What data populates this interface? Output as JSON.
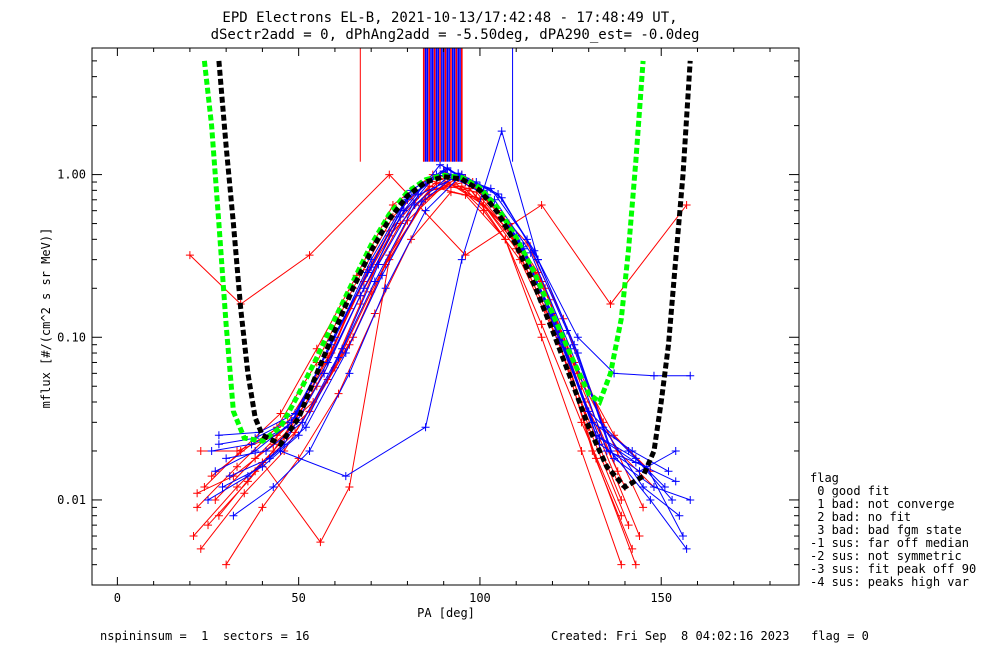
{
  "title_line1": "EPD Electrons EL-B, 2021-10-13/17:42:48 - 17:48:49 UT,",
  "title_line2": "dSectr2add = 0, dPhAng2add = -5.50deg, dPA290_est=  -0.0deg",
  "footer_left": "nspininsum =  1  sectors = 16",
  "footer_right": "Created: Fri Sep  8 04:02:16 2023   flag = 0",
  "legend": {
    "title": "flag",
    "items": [
      " 0 good fit",
      " 1 bad: not converge",
      " 2 bad: no fit",
      " 3 bad: bad fgm state",
      "-1 sus: far off median",
      "-2 sus: not symmetric",
      "-3 sus: fit peak off 90",
      "-4 sus: peaks high var"
    ]
  },
  "chart_data": {
    "type": "line",
    "xlabel": "PA [deg]",
    "ylabel": "mflux [#/(cm^2 s sr MeV)]",
    "xlim": [
      -7,
      188
    ],
    "ylim": [
      0.003,
      6
    ],
    "yscale": "log",
    "xticks": [
      0,
      50,
      100,
      150
    ],
    "xtick_labels": [
      "0",
      "50",
      "100",
      "150"
    ],
    "yticks": [
      0.01,
      0.1,
      1.0
    ],
    "ytick_labels": [
      "0.01",
      "0.10",
      "1.00"
    ],
    "colors": {
      "red": "#ff0000",
      "blue": "#0000ff",
      "green_fit": "#00ff00",
      "black_fit": "#000000"
    },
    "series": [
      {
        "color": "red",
        "x": [
          20,
          34,
          53,
          75,
          96,
          117,
          136,
          157
        ],
        "y": [
          0.32,
          0.16,
          0.32,
          1.0,
          0.32,
          0.65,
          0.16,
          0.65
        ]
      },
      {
        "color": "red",
        "x": [
          21,
          33,
          43,
          55,
          64,
          75,
          86,
          96,
          107,
          117,
          128,
          139
        ],
        "y": [
          0.006,
          0.012,
          0.02,
          0.05,
          0.15,
          0.45,
          0.85,
          0.75,
          0.4,
          0.12,
          0.03,
          0.008
        ]
      },
      {
        "color": "red",
        "x": [
          22,
          33,
          44,
          55,
          65,
          76,
          86,
          97,
          108,
          118,
          129,
          139
        ],
        "y": [
          0.009,
          0.016,
          0.028,
          0.07,
          0.2,
          0.55,
          0.92,
          0.82,
          0.45,
          0.15,
          0.035,
          0.01
        ]
      },
      {
        "color": "red",
        "x": [
          24,
          34,
          45,
          55,
          66,
          76,
          87,
          98,
          108,
          119,
          129,
          140
        ],
        "y": [
          0.012,
          0.02,
          0.034,
          0.085,
          0.24,
          0.65,
          1.0,
          0.9,
          0.5,
          0.17,
          0.04,
          0.012
        ]
      },
      {
        "color": "red",
        "x": [
          25,
          36,
          46,
          57,
          67,
          78,
          88,
          99,
          109,
          120,
          130,
          141
        ],
        "y": [
          0.007,
          0.013,
          0.024,
          0.06,
          0.18,
          0.5,
          0.88,
          0.78,
          0.42,
          0.14,
          0.028,
          0.007
        ]
      },
      {
        "color": "red",
        "x": [
          26,
          37,
          47,
          58,
          68,
          79,
          89,
          100,
          110,
          121,
          131,
          142
        ],
        "y": [
          0.014,
          0.022,
          0.03,
          0.075,
          0.22,
          0.6,
          0.95,
          0.7,
          0.35,
          0.11,
          0.02,
          0.005
        ]
      },
      {
        "color": "red",
        "x": [
          23,
          35,
          46,
          58,
          67,
          75,
          86,
          95,
          107,
          118,
          128,
          138
        ],
        "y": [
          0.005,
          0.011,
          0.02,
          0.055,
          0.16,
          0.42,
          0.8,
          0.85,
          0.48,
          0.2,
          0.05,
          0.015
        ]
      },
      {
        "color": "red",
        "x": [
          27,
          38,
          48,
          59,
          69,
          80,
          90,
          101,
          111,
          122,
          132,
          143
        ],
        "y": [
          0.01,
          0.018,
          0.03,
          0.08,
          0.26,
          0.7,
          1.05,
          0.6,
          0.3,
          0.09,
          0.018,
          0.004
        ]
      },
      {
        "color": "red",
        "x": [
          28,
          38,
          49,
          60,
          70,
          80,
          91,
          101,
          112,
          122,
          133,
          144
        ],
        "y": [
          0.008,
          0.015,
          0.026,
          0.065,
          0.19,
          0.52,
          0.9,
          0.65,
          0.33,
          0.1,
          0.024,
          0.006
        ]
      },
      {
        "color": "red",
        "x": [
          30,
          40,
          50,
          61,
          71,
          81,
          92,
          102,
          113,
          123,
          134,
          145
        ],
        "y": [
          0.004,
          0.009,
          0.018,
          0.045,
          0.14,
          0.4,
          0.78,
          0.7,
          0.38,
          0.13,
          0.03,
          0.009
        ]
      },
      {
        "color": "red",
        "x": [
          40,
          56,
          64,
          75,
          86,
          96,
          107,
          117,
          128,
          139
        ],
        "y": [
          0.017,
          0.0055,
          0.012,
          0.3,
          0.8,
          0.9,
          0.4,
          0.1,
          0.02,
          0.004
        ]
      },
      {
        "color": "red",
        "x": [
          23,
          33,
          44,
          54,
          65,
          75,
          86,
          96,
          106,
          117,
          127,
          138,
          148
        ],
        "y": [
          0.02,
          0.02,
          0.025,
          0.04,
          0.1,
          0.32,
          0.75,
          0.95,
          0.55,
          0.22,
          0.06,
          0.02,
          0.012
        ]
      },
      {
        "color": "red",
        "x": [
          22,
          32,
          43,
          53,
          64,
          74,
          85,
          95,
          105,
          116,
          126,
          137,
          147
        ],
        "y": [
          0.011,
          0.014,
          0.022,
          0.035,
          0.09,
          0.28,
          0.7,
          1.0,
          0.6,
          0.25,
          0.07,
          0.025,
          0.015
        ]
      },
      {
        "color": "blue",
        "x": [
          26,
          37,
          47,
          58,
          68,
          79,
          89,
          100,
          110,
          121,
          131,
          142,
          152
        ],
        "y": [
          0.02,
          0.022,
          0.028,
          0.07,
          0.2,
          0.6,
          1.15,
          0.85,
          0.42,
          0.12,
          0.03,
          0.02,
          0.015
        ]
      },
      {
        "color": "blue",
        "x": [
          27,
          38,
          48,
          59,
          69,
          80,
          90,
          101,
          111,
          122,
          132,
          143,
          153
        ],
        "y": [
          0.015,
          0.02,
          0.03,
          0.09,
          0.25,
          0.7,
          1.05,
          0.8,
          0.38,
          0.1,
          0.025,
          0.018,
          0.01
        ]
      },
      {
        "color": "blue",
        "x": [
          28,
          39,
          49,
          60,
          70,
          81,
          91,
          102,
          112,
          123,
          133,
          144,
          154
        ],
        "y": [
          0.025,
          0.026,
          0.034,
          0.1,
          0.3,
          0.8,
          1.1,
          0.75,
          0.35,
          0.09,
          0.022,
          0.015,
          0.02
        ]
      },
      {
        "color": "blue",
        "x": [
          29,
          40,
          50,
          61,
          71,
          82,
          92,
          103,
          113,
          124,
          134,
          145,
          155
        ],
        "y": [
          0.012,
          0.016,
          0.025,
          0.075,
          0.22,
          0.65,
          1.0,
          0.82,
          0.4,
          0.11,
          0.028,
          0.012,
          0.008
        ]
      },
      {
        "color": "blue",
        "x": [
          30,
          41,
          51,
          62,
          72,
          83,
          93,
          104,
          114,
          125,
          135,
          146,
          156
        ],
        "y": [
          0.018,
          0.02,
          0.03,
          0.085,
          0.28,
          0.75,
          0.95,
          0.7,
          0.33,
          0.085,
          0.02,
          0.016,
          0.006
        ]
      },
      {
        "color": "blue",
        "x": [
          25,
          36,
          46,
          57,
          67,
          78,
          88,
          99,
          109,
          120,
          130,
          141,
          151
        ],
        "y": [
          0.01,
          0.014,
          0.022,
          0.06,
          0.18,
          0.55,
          1.0,
          0.9,
          0.45,
          0.14,
          0.035,
          0.02,
          0.012
        ]
      },
      {
        "color": "blue",
        "x": [
          32,
          43,
          53,
          64,
          74,
          85,
          95,
          106,
          116,
          127,
          137,
          148,
          158
        ],
        "y": [
          0.008,
          0.012,
          0.02,
          0.06,
          0.2,
          0.6,
          1.0,
          0.72,
          0.3,
          0.08,
          0.018,
          0.012,
          0.01
        ]
      },
      {
        "color": "blue",
        "x": [
          28,
          38,
          49,
          59,
          70,
          80,
          91,
          101,
          112,
          122,
          133,
          143,
          154
        ],
        "y": [
          0.022,
          0.024,
          0.032,
          0.095,
          0.27,
          0.72,
          1.08,
          0.78,
          0.36,
          0.095,
          0.024,
          0.017,
          0.013
        ]
      },
      {
        "color": "blue",
        "x": [
          45,
          63,
          85,
          95,
          106,
          116,
          127,
          137,
          148,
          158
        ],
        "y": [
          0.02,
          0.014,
          0.028,
          0.3,
          1.85,
          0.3,
          0.1,
          0.06,
          0.058,
          0.058
        ]
      },
      {
        "color": "blue",
        "x": [
          31,
          42,
          52,
          63,
          73,
          84,
          94,
          105,
          115,
          126,
          136,
          147,
          157
        ],
        "y": [
          0.014,
          0.018,
          0.028,
          0.08,
          0.24,
          0.68,
          1.02,
          0.76,
          0.34,
          0.09,
          0.02,
          0.01,
          0.005
        ]
      }
    ],
    "vertical_segments": [
      {
        "color": "red",
        "x": 67,
        "y_from": 1.2,
        "y_to": 6
      },
      {
        "color": "blue",
        "x": 109,
        "y_from": 1.2,
        "y_to": 6
      }
    ],
    "fit_curves": [
      {
        "color": "green_fit",
        "style": "dashed",
        "x": [
          24,
          26,
          28,
          30,
          32,
          35,
          40,
          45,
          50,
          55,
          60,
          65,
          70,
          75,
          80,
          85,
          90,
          95,
          100,
          105,
          110,
          115,
          120,
          125,
          130,
          133,
          136,
          139,
          141,
          143,
          145
        ],
        "y": [
          5.0,
          2.0,
          0.5,
          0.12,
          0.035,
          0.024,
          0.023,
          0.028,
          0.045,
          0.075,
          0.13,
          0.22,
          0.37,
          0.57,
          0.78,
          0.93,
          0.99,
          0.96,
          0.83,
          0.62,
          0.41,
          0.25,
          0.14,
          0.078,
          0.045,
          0.04,
          0.06,
          0.13,
          0.35,
          1.2,
          5.0
        ]
      },
      {
        "color": "black_fit",
        "style": "dashed",
        "x": [
          28,
          30,
          32,
          34,
          36,
          38,
          40,
          45,
          50,
          55,
          60,
          65,
          70,
          75,
          80,
          85,
          90,
          95,
          100,
          105,
          110,
          115,
          120,
          125,
          130,
          135,
          140,
          145,
          148,
          150,
          152,
          154,
          156,
          158
        ],
        "y": [
          5.0,
          1.5,
          0.5,
          0.15,
          0.06,
          0.032,
          0.025,
          0.022,
          0.032,
          0.06,
          0.11,
          0.2,
          0.34,
          0.53,
          0.74,
          0.9,
          0.97,
          0.94,
          0.8,
          0.58,
          0.37,
          0.21,
          0.11,
          0.056,
          0.028,
          0.016,
          0.012,
          0.014,
          0.02,
          0.04,
          0.09,
          0.3,
          1.0,
          5.0
        ]
      }
    ]
  }
}
